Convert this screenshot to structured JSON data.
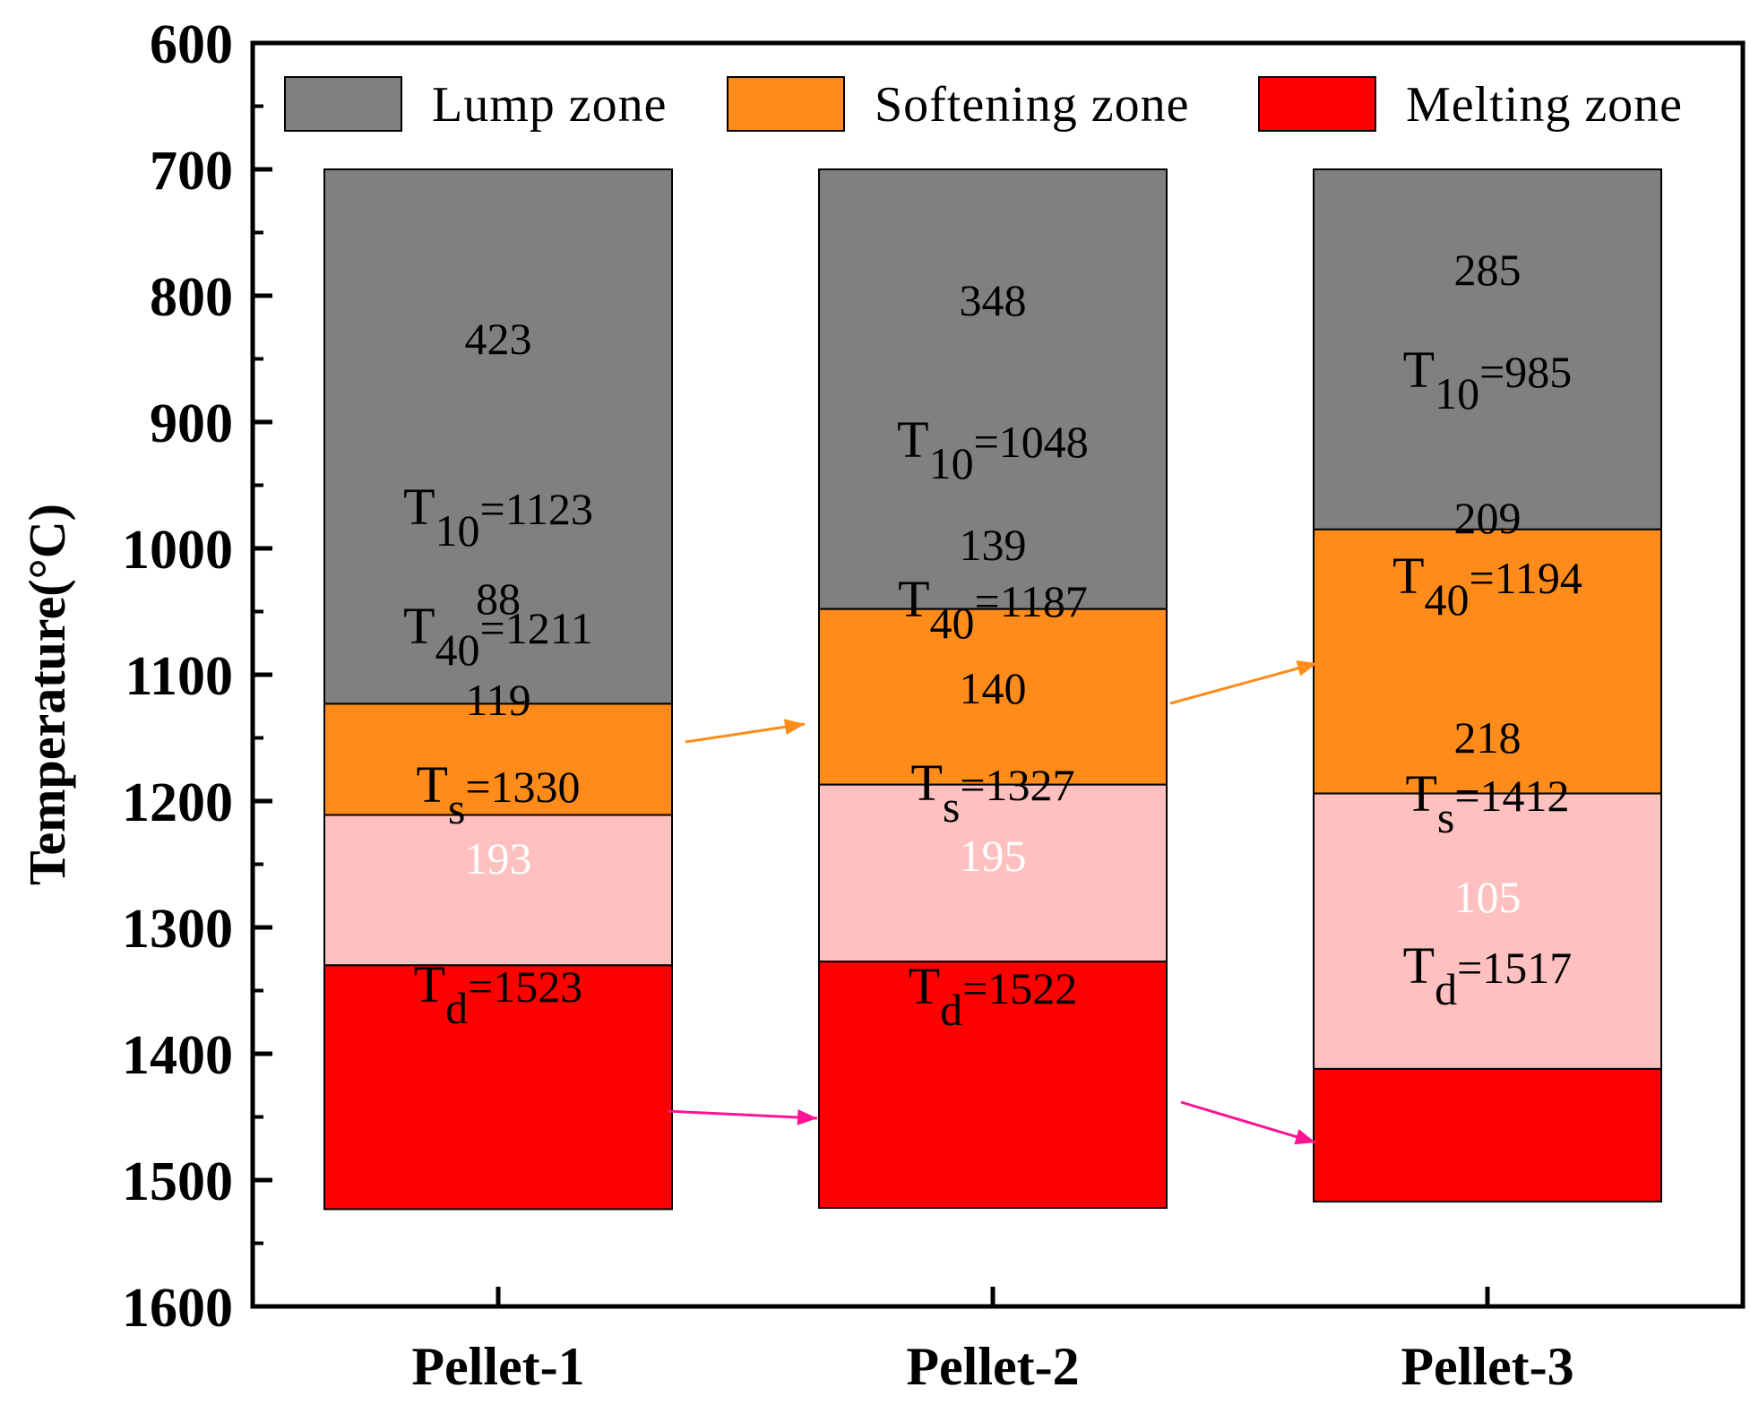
{
  "chart_data": {
    "type": "bar",
    "subtype": "stacked-floating",
    "title": "",
    "xlabel": "",
    "ylabel": "Temperature(°C)",
    "ylim": [
      600,
      1600
    ],
    "y_inverted": true,
    "y_ticks": [
      600,
      700,
      800,
      900,
      1000,
      1100,
      1200,
      1300,
      1400,
      1500,
      1600
    ],
    "categories": [
      "Pellet-1",
      "Pellet-2",
      "Pellet-3"
    ],
    "legend": [
      {
        "name": "Lump zone",
        "color": "#808080"
      },
      {
        "name": "Softening zone",
        "color": "#ff8c1a"
      },
      {
        "name": "Melting zone",
        "color": "#ff0000"
      }
    ],
    "legend_position": "top",
    "colors": {
      "lump": "#808080",
      "softening": "#ff8c1a",
      "softening_lower": "#ffc0c0",
      "melting": "#ff0000",
      "arrow_orange": "#ff8c1a",
      "arrow_pink": "#ff1493"
    },
    "start_temperature": 700,
    "pellets": [
      {
        "name": "Pellet-1",
        "T10": 1123,
        "T40": 1211,
        "Ts": 1330,
        "Td": 1523,
        "lump_width": "423",
        "soft_upper_width": "88",
        "soft_lower_width": "119",
        "melt_width": "193",
        "T10_text": "=1123",
        "T40_text": "=1211",
        "Ts_text": "=1330",
        "Td_text": "=1523"
      },
      {
        "name": "Pellet-2",
        "T10": 1048,
        "T40": 1187,
        "Ts": 1327,
        "Td": 1522,
        "lump_width": "348",
        "soft_upper_width": "139",
        "soft_lower_width": "140",
        "melt_width": "195",
        "T10_text": "=1048",
        "T40_text": "=1187",
        "Ts_text": "=1327",
        "Td_text": "=1522"
      },
      {
        "name": "Pellet-3",
        "T10": 985,
        "T40": 1194,
        "Ts": 1412,
        "Td": 1517,
        "lump_width": "285",
        "soft_upper_width": "209",
        "soft_lower_width": "218",
        "melt_width": "105",
        "T10_text": "=985",
        "T40_text": "=1194",
        "Ts_text": "=1412",
        "Td_text": "=1517"
      }
    ],
    "temp_symbols": {
      "main": "T",
      "sub10": "10",
      "sub40": "40",
      "subs": "s",
      "subd": "d"
    }
  }
}
